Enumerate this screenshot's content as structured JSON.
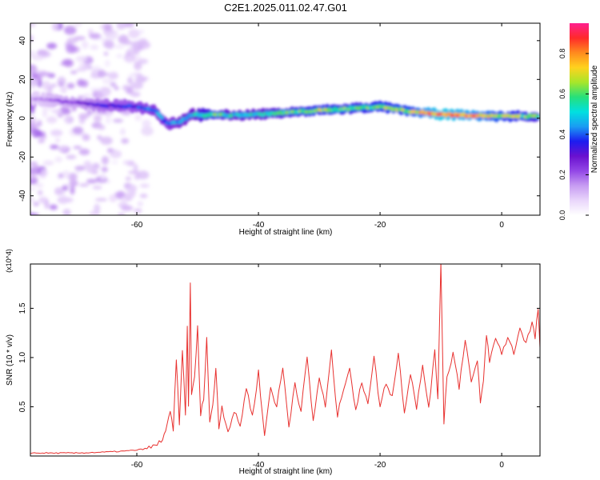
{
  "title": "C2E1.2025.011.02.47.G01",
  "colors": {
    "snr_line": "#e8312f",
    "cmap": [
      "#ffffff",
      "#e9d6fb",
      "#c79cf2",
      "#9347e6",
      "#6a11cf",
      "#1c1cf0",
      "#1a9cf3",
      "#00e0e0",
      "#26e07a",
      "#a8e62a",
      "#ffd21e",
      "#ff8a1e",
      "#ff2a2a",
      "#ff1f8f"
    ]
  },
  "chart_data": [
    {
      "type": "heatmap",
      "xlabel": "Height of straight line (km)",
      "ylabel": "Frequency (Hz)",
      "xlim": [
        -77.5,
        6.3
      ],
      "ylim": [
        -50,
        49
      ],
      "xticks": [
        -60,
        -40,
        -20,
        0
      ],
      "yticks": [
        -40,
        -20,
        0,
        20,
        40
      ],
      "colorbar": {
        "label": "Normalized spectral amplitude",
        "range": [
          0,
          0.95
        ],
        "ticks": [
          "0.0",
          "0.2",
          "0.4",
          "0.6",
          "0.8"
        ]
      },
      "ridge": {
        "x": [
          -77,
          -70,
          -65,
          -60,
          -57,
          -55,
          -53,
          -51,
          -49,
          -47,
          -45,
          -40,
          -35,
          -30,
          -25,
          -20,
          -15,
          -10,
          -5,
          0,
          6
        ],
        "freq": [
          10,
          8,
          6.5,
          6,
          4,
          -3,
          -2,
          2,
          1.5,
          2,
          1.5,
          2,
          3,
          4,
          5,
          6,
          3.5,
          2,
          1.5,
          1,
          1
        ],
        "amplitude": [
          0.15,
          0.25,
          0.35,
          0.38,
          0.45,
          0.42,
          0.5,
          0.52,
          0.6,
          0.62,
          0.55,
          0.55,
          0.6,
          0.65,
          0.62,
          0.66,
          0.7,
          0.88,
          0.8,
          0.7,
          0.6
        ]
      },
      "noise_region": {
        "x_range": [
          -77.5,
          -58
        ],
        "freq_range": [
          -50,
          49
        ]
      }
    },
    {
      "type": "line",
      "xlabel": "Height of straight line (km)",
      "ylabel": "SNR (10 * v/v)",
      "y_multiplier": "(x10^4)",
      "xlim": [
        -77.5,
        6.3
      ],
      "ylim": [
        0,
        1.95
      ],
      "xticks": [
        -60,
        -40,
        -20,
        0
      ],
      "yticks": [
        "0.5",
        "1.0",
        "1.5"
      ],
      "series": [
        {
          "x": [
            -77.5,
            -70,
            -65,
            -62,
            -60,
            -58,
            -57,
            -56,
            -55.5,
            -55,
            -54.5,
            -54,
            -53.5,
            -53,
            -52.5,
            -52,
            -51.7,
            -51.5,
            -51.2,
            -51,
            -50.5,
            -50,
            -49.5,
            -49,
            -48.5,
            -48,
            -47.5,
            -47,
            -46.5,
            -46,
            -45,
            -44,
            -43,
            -42,
            -41,
            -40,
            -39,
            -38,
            -37,
            -36,
            -35,
            -34,
            -33,
            -32,
            -31,
            -30,
            -29,
            -28,
            -27,
            -26,
            -25,
            -24,
            -23,
            -22,
            -21,
            -20,
            -19,
            -18,
            -17,
            -16,
            -15,
            -14,
            -13,
            -12,
            -11,
            -10.5,
            -10,
            -9.5,
            -9,
            -8,
            -7,
            -6,
            -5,
            -4,
            -3.5,
            -3,
            -2.5,
            -2,
            -1,
            0,
            1,
            2,
            3,
            4,
            5,
            5.5,
            6,
            6.3
          ],
          "y": [
            0.03,
            0.03,
            0.04,
            0.05,
            0.06,
            0.08,
            0.1,
            0.15,
            0.22,
            0.3,
            0.45,
            0.25,
            1.0,
            0.3,
            1.1,
            0.4,
            1.3,
            0.5,
            1.78,
            0.6,
            0.8,
            1.3,
            0.4,
            0.6,
            1.2,
            0.35,
            0.5,
            0.9,
            0.3,
            0.5,
            0.25,
            0.45,
            0.3,
            0.7,
            0.4,
            0.85,
            0.2,
            0.7,
            0.5,
            0.9,
            0.3,
            0.75,
            0.45,
            1.0,
            0.35,
            0.8,
            0.5,
            1.05,
            0.4,
            0.7,
            0.9,
            0.45,
            0.75,
            0.55,
            1.0,
            0.5,
            0.75,
            0.6,
            1.05,
            0.45,
            0.85,
            0.5,
            0.9,
            0.5,
            1.05,
            0.6,
            1.97,
            0.35,
            0.8,
            1.05,
            0.7,
            1.2,
            0.75,
            0.95,
            0.55,
            0.75,
            1.25,
            0.95,
            1.2,
            1.05,
            1.2,
            1.05,
            1.3,
            1.15,
            1.35,
            1.2,
            1.5,
            1.1
          ]
        }
      ]
    }
  ]
}
